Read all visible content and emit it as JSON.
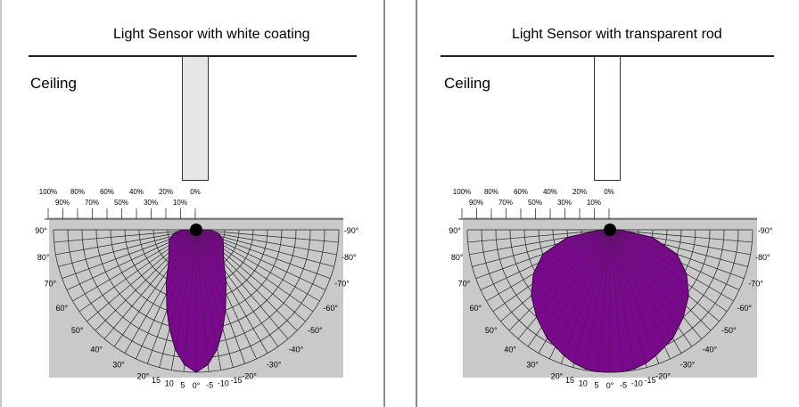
{
  "panels": [
    {
      "title": "Light Sensor with white coating",
      "ceiling_label": "Ceiling",
      "rod_color": "#e6e6e6",
      "pattern_id": "coating"
    },
    {
      "title": "Light Sensor with transparent rod",
      "ceiling_label": "Ceiling",
      "rod_color": "#ffffff",
      "pattern_id": "transparent"
    }
  ],
  "polar": {
    "percent_top": [
      "100%",
      "80%",
      "60%",
      "40%",
      "20%",
      "0%"
    ],
    "percent_bottom": [
      "90%",
      "70%",
      "50%",
      "30%",
      "10%"
    ],
    "angle_labels_left": [
      "90°",
      "80°",
      "70°",
      "60°",
      "50°",
      "40°",
      "30°",
      "20°",
      "15",
      "10",
      "5"
    ],
    "angle_labels_right": [
      "-90°",
      "-80°",
      "-70°",
      "-60°",
      "-50°",
      "-40°",
      "-30°",
      "-20°",
      "-15",
      "-10",
      "-5"
    ],
    "zero_label": "0°",
    "fill_color": "#7a0a8c",
    "background_color": "#c9c9c9"
  },
  "chart_data": [
    {
      "type": "polar",
      "title": "Light Sensor with white coating",
      "angle_unit": "degrees",
      "angles": [
        -90,
        -80,
        -70,
        -60,
        -50,
        -40,
        -30,
        -20,
        -15,
        -10,
        -5,
        0,
        5,
        10,
        15,
        20,
        30,
        40,
        50,
        60,
        70,
        80,
        90
      ],
      "relative_sensitivity": [
        0.1,
        0.16,
        0.2,
        0.22,
        0.25,
        0.3,
        0.42,
        0.6,
        0.72,
        0.85,
        0.95,
        1.0,
        0.95,
        0.85,
        0.72,
        0.6,
        0.42,
        0.3,
        0.25,
        0.22,
        0.2,
        0.16,
        0.1
      ],
      "radial_range": [
        0,
        1
      ]
    },
    {
      "type": "polar",
      "title": "Light Sensor with transparent rod",
      "angle_unit": "degrees",
      "angles": [
        -90,
        -80,
        -70,
        -60,
        -50,
        -40,
        -30,
        -20,
        -15,
        -10,
        -5,
        0,
        5,
        10,
        15,
        20,
        30,
        40,
        50,
        60,
        70,
        80,
        90
      ],
      "relative_sensitivity": [
        0.06,
        0.3,
        0.5,
        0.62,
        0.72,
        0.8,
        0.88,
        0.94,
        0.97,
        0.99,
        1.0,
        1.0,
        1.0,
        0.99,
        0.97,
        0.94,
        0.88,
        0.8,
        0.72,
        0.62,
        0.5,
        0.3,
        0.06
      ],
      "radial_range": [
        0,
        1
      ]
    }
  ]
}
